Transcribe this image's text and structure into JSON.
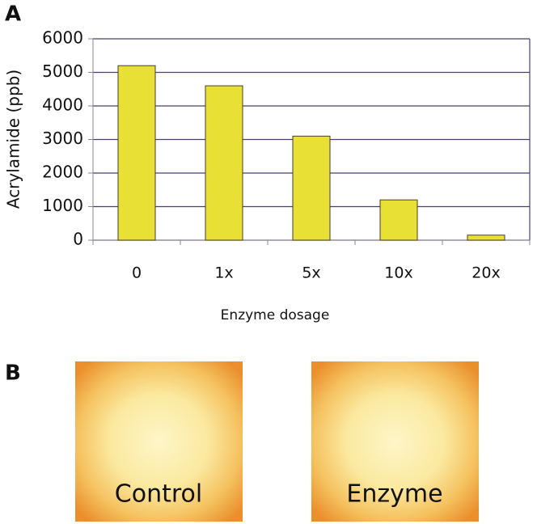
{
  "panel_labels": [
    "A",
    "B"
  ],
  "chart_data": {
    "type": "bar",
    "y_label": "Acrylamide (ppb)",
    "x_label": "Enzyme dosage",
    "categories": [
      "0",
      "1x",
      "5x",
      "10x",
      "20x"
    ],
    "values": [
      5200,
      4600,
      3100,
      1200,
      150
    ],
    "color": "#e8e034",
    "ylim": [
      0,
      6000
    ],
    "yticks": [
      0,
      1000,
      2000,
      3000,
      4000,
      5000,
      6000
    ],
    "grid": true
  },
  "photos": [
    {
      "label": "Control"
    },
    {
      "label": "Enzyme"
    }
  ]
}
